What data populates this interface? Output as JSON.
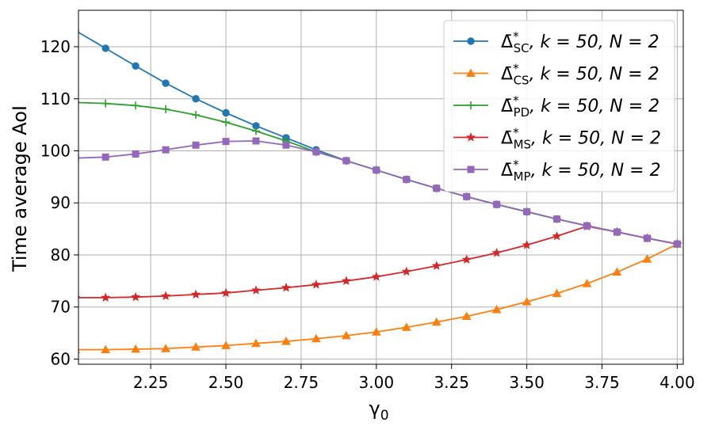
{
  "chart_data": {
    "type": "line",
    "xlabel": "γ",
    "xlabel_sub": "0",
    "ylabel": "Time average AoI",
    "xlim": [
      2.01,
      4.02
    ],
    "ylim": [
      59,
      127
    ],
    "xticks": [
      2.25,
      2.5,
      2.75,
      3.0,
      3.25,
      3.5,
      3.75,
      4.0
    ],
    "xtick_labels": [
      "2.25",
      "2.50",
      "2.75",
      "3.00",
      "3.25",
      "3.50",
      "3.75",
      "4.00"
    ],
    "yticks": [
      60,
      70,
      80,
      90,
      100,
      110,
      120
    ],
    "ytick_labels": [
      "60",
      "70",
      "80",
      "90",
      "100",
      "110",
      "120"
    ],
    "grid": true,
    "legend_position": "top-right",
    "series": [
      {
        "name": "Δ̄*SC, k = 50, N = 2",
        "legend_symbol": "Δ̄",
        "legend_sub": "SC",
        "legend_sup": "*",
        "legend_rest": ", k = 50, N = 2",
        "color": "#1f77b4",
        "marker": "circle",
        "x": [
          2.0,
          2.1,
          2.2,
          2.3,
          2.4,
          2.5,
          2.6,
          2.7,
          2.8,
          2.9,
          3.0,
          3.1,
          3.2,
          3.3,
          3.4,
          3.5,
          3.6,
          3.7,
          3.8,
          3.9,
          4.0
        ],
        "y": [
          123.1,
          119.7,
          116.3,
          113.0,
          110.0,
          107.3,
          104.8,
          102.5,
          100.2,
          98.1,
          96.3,
          94.5,
          92.8,
          91.2,
          89.7,
          88.3,
          86.9,
          85.6,
          84.4,
          83.2,
          82.1
        ]
      },
      {
        "name": "Δ̄*CS, k = 50, N = 2",
        "legend_symbol": "Δ̄",
        "legend_sub": "CS",
        "legend_sup": "*",
        "legend_rest": ", k = 50, N = 2",
        "color": "#ff7f0e",
        "marker": "triangle",
        "x": [
          2.0,
          2.1,
          2.2,
          2.3,
          2.4,
          2.5,
          2.6,
          2.7,
          2.8,
          2.9,
          3.0,
          3.1,
          3.2,
          3.3,
          3.4,
          3.5,
          3.6,
          3.7,
          3.8,
          3.9,
          4.0
        ],
        "y": [
          61.8,
          61.8,
          61.9,
          62.0,
          62.3,
          62.6,
          63.0,
          63.4,
          63.9,
          64.5,
          65.2,
          66.1,
          67.1,
          68.2,
          69.5,
          71.0,
          72.6,
          74.5,
          76.7,
          79.2,
          82.1
        ]
      },
      {
        "name": "Δ̄*PD, k = 50, N = 2",
        "legend_symbol": "Δ̄",
        "legend_sub": "PD",
        "legend_sup": "*",
        "legend_rest": ", k = 50, N = 2",
        "color": "#2ca02c",
        "marker": "plus",
        "x": [
          2.0,
          2.1,
          2.2,
          2.3,
          2.4,
          2.5,
          2.6,
          2.7,
          2.8,
          2.9,
          3.0,
          3.1,
          3.2,
          3.3,
          3.4,
          3.5,
          3.6,
          3.7,
          3.8,
          3.9,
          4.0
        ],
        "y": [
          109.3,
          109.1,
          108.7,
          108.0,
          106.9,
          105.5,
          103.8,
          101.9,
          99.8,
          98.1,
          96.3,
          94.5,
          92.8,
          91.2,
          89.7,
          88.3,
          86.9,
          85.6,
          84.4,
          83.2,
          82.1
        ]
      },
      {
        "name": "Δ̄*MS, k = 50, N = 2",
        "legend_symbol": "Δ̄",
        "legend_sub": "MS",
        "legend_sup": "*",
        "legend_rest": ", k = 50, N = 2",
        "color": "#d62728",
        "marker": "star",
        "x": [
          2.0,
          2.1,
          2.2,
          2.3,
          2.4,
          2.5,
          2.6,
          2.7,
          2.8,
          2.9,
          3.0,
          3.1,
          3.2,
          3.3,
          3.4,
          3.5,
          3.6,
          3.7,
          3.8,
          3.9,
          4.0
        ],
        "y": [
          71.8,
          71.8,
          71.9,
          72.1,
          72.4,
          72.7,
          73.2,
          73.7,
          74.3,
          75.0,
          75.8,
          76.8,
          77.9,
          79.1,
          80.4,
          81.9,
          83.6,
          85.5,
          84.4,
          83.2,
          82.1
        ]
      },
      {
        "name": "Δ̄*MP, k = 50, N = 2",
        "legend_symbol": "Δ̄",
        "legend_sub": "MP",
        "legend_sup": "*",
        "legend_rest": ", k = 50, N = 2",
        "color": "#9467bd",
        "marker": "square",
        "x": [
          2.0,
          2.1,
          2.2,
          2.3,
          2.4,
          2.5,
          2.6,
          2.7,
          2.8,
          2.9,
          3.0,
          3.1,
          3.2,
          3.3,
          3.4,
          3.5,
          3.6,
          3.7,
          3.8,
          3.9,
          4.0
        ],
        "y": [
          98.6,
          98.8,
          99.4,
          100.2,
          101.1,
          101.8,
          101.9,
          101.1,
          99.8,
          98.1,
          96.3,
          94.5,
          92.8,
          91.2,
          89.7,
          88.3,
          86.9,
          85.6,
          84.4,
          83.2,
          82.1
        ]
      }
    ]
  }
}
